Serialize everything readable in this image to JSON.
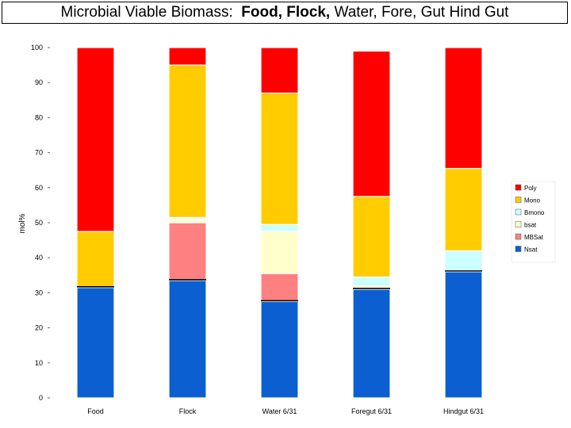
{
  "title": {
    "part1": "Microbial Viable Biomass:  ",
    "part2": "Food, Flock,",
    "part3": " Water, Fore, Gut Hind Gut"
  },
  "chart_data": {
    "type": "bar",
    "stacked": true,
    "categories": [
      "Food",
      "Flock",
      "Water 6/31",
      "Foregut 6/31",
      "Hindgut 6/31"
    ],
    "ylabel": "mol%",
    "ylim": [
      0,
      100
    ],
    "yticks": [
      0,
      10,
      20,
      30,
      40,
      50,
      60,
      70,
      80,
      90,
      100
    ],
    "grid": false,
    "legend_position": "right",
    "series": [
      {
        "name": "Nsat",
        "color": "#0b5fd0",
        "values": [
          31.5,
          33.5,
          27.5,
          31,
          36
        ]
      },
      {
        "name": "MBSat",
        "color": "#ff8080",
        "values": [
          0,
          16.5,
          8,
          0,
          0
        ]
      },
      {
        "name": "bsat",
        "color": "#ffffcc",
        "values": [
          0,
          1,
          12,
          1,
          0
        ]
      },
      {
        "name": "Bmono",
        "color": "#ccffff",
        "values": [
          0,
          0.5,
          2,
          2.5,
          6
        ]
      },
      {
        "name": "Mono",
        "color": "#ffcc00",
        "values": [
          16,
          43.5,
          37.5,
          23,
          23.5
        ]
      },
      {
        "name": "Poly",
        "color": "#ff0000",
        "values": [
          52.5,
          5,
          13,
          41.5,
          34.5
        ]
      }
    ]
  }
}
